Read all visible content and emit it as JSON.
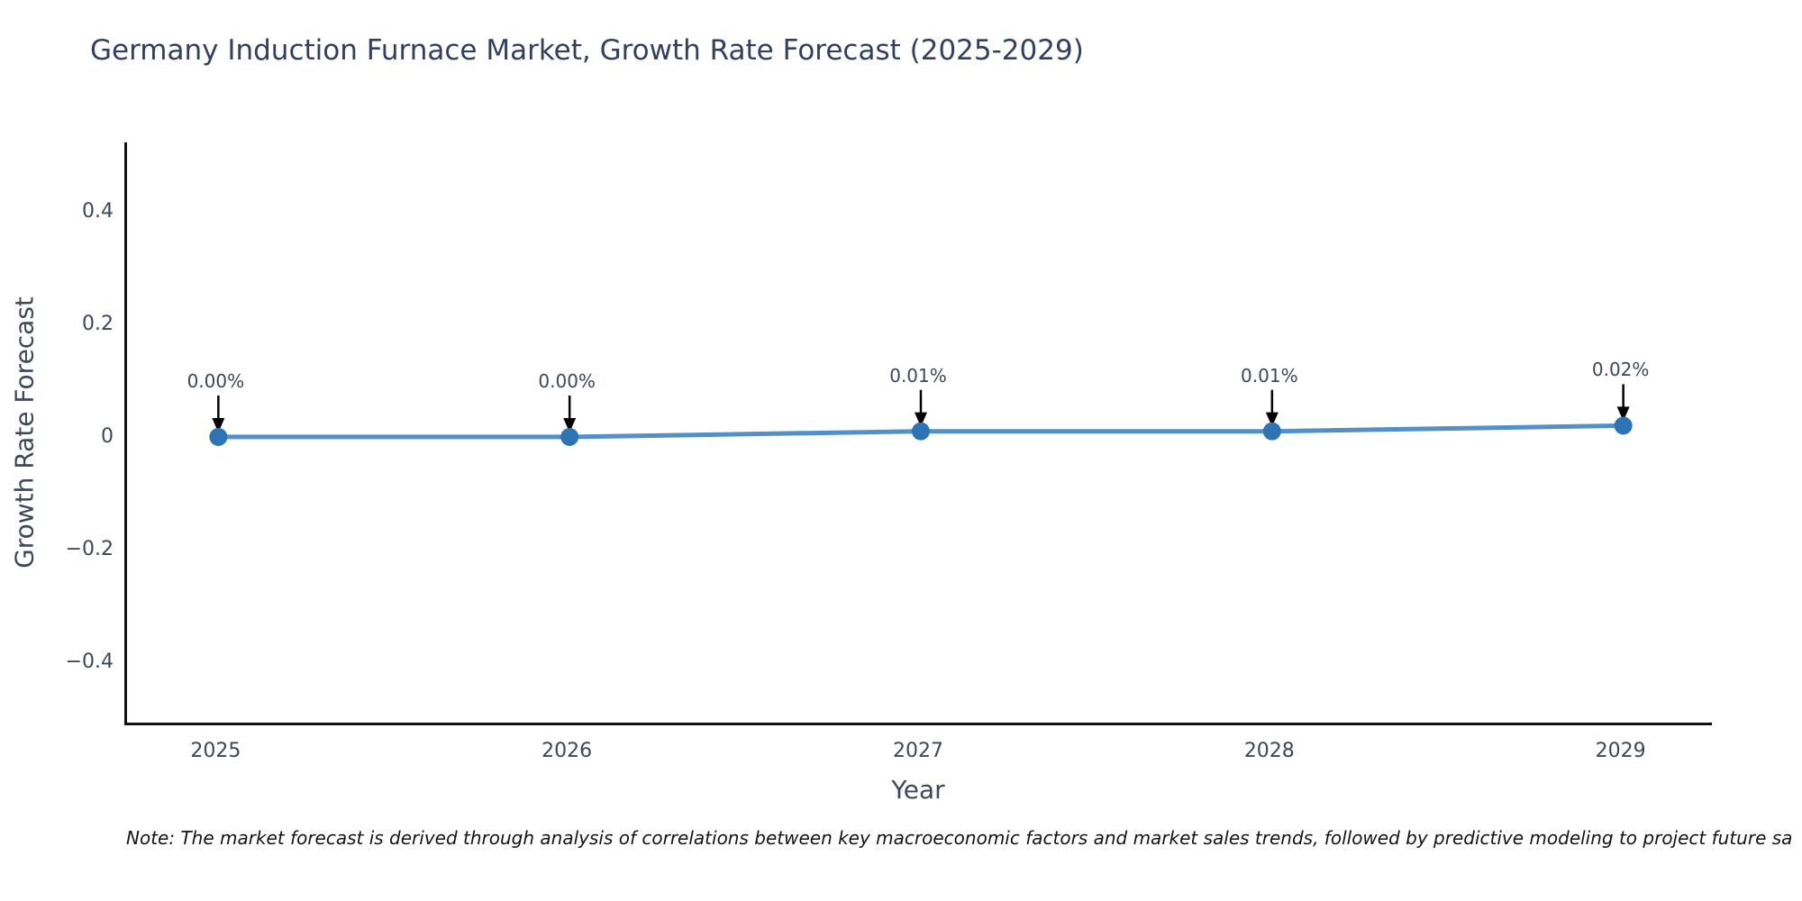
{
  "note": "Note: The market forecast is derived through analysis of correlations between key macroeconomic factors and market sales trends, followed by predictive modeling to project future sa",
  "colors": {
    "title": "#333f5e",
    "axis_text": "#3c4759",
    "spine": "#111111",
    "arrow": "#000000",
    "line": "#5390c8",
    "marker": "#2e73b4",
    "background": "#ffffff"
  },
  "chart_data": {
    "type": "line",
    "title": "Germany Induction Furnace Market, Growth Rate Forecast (2025-2029)",
    "xlabel": "Year",
    "ylabel": "Growth Rate Forecast",
    "x": [
      2025,
      2026,
      2027,
      2028,
      2029
    ],
    "values": [
      0.0,
      0.0,
      0.01,
      0.01,
      0.02
    ],
    "point_labels": [
      "0.00%",
      "0.00%",
      "0.01%",
      "0.01%",
      "0.02%"
    ],
    "xlim": [
      2024.74,
      2029.26
    ],
    "ylim": [
      -0.512,
      0.523
    ],
    "ytick_values": [
      0.4,
      0.2,
      0,
      -0.2,
      -0.4
    ],
    "ytick_labels": [
      "0.4",
      "0.2",
      "0",
      "−0.2",
      "−0.4"
    ],
    "xtick_values": [
      2025,
      2026,
      2027,
      2028,
      2029
    ],
    "xtick_labels": [
      "2025",
      "2026",
      "2027",
      "2028",
      "2029"
    ],
    "grid": false,
    "legend": false,
    "annotation_style": "down-arrow"
  }
}
